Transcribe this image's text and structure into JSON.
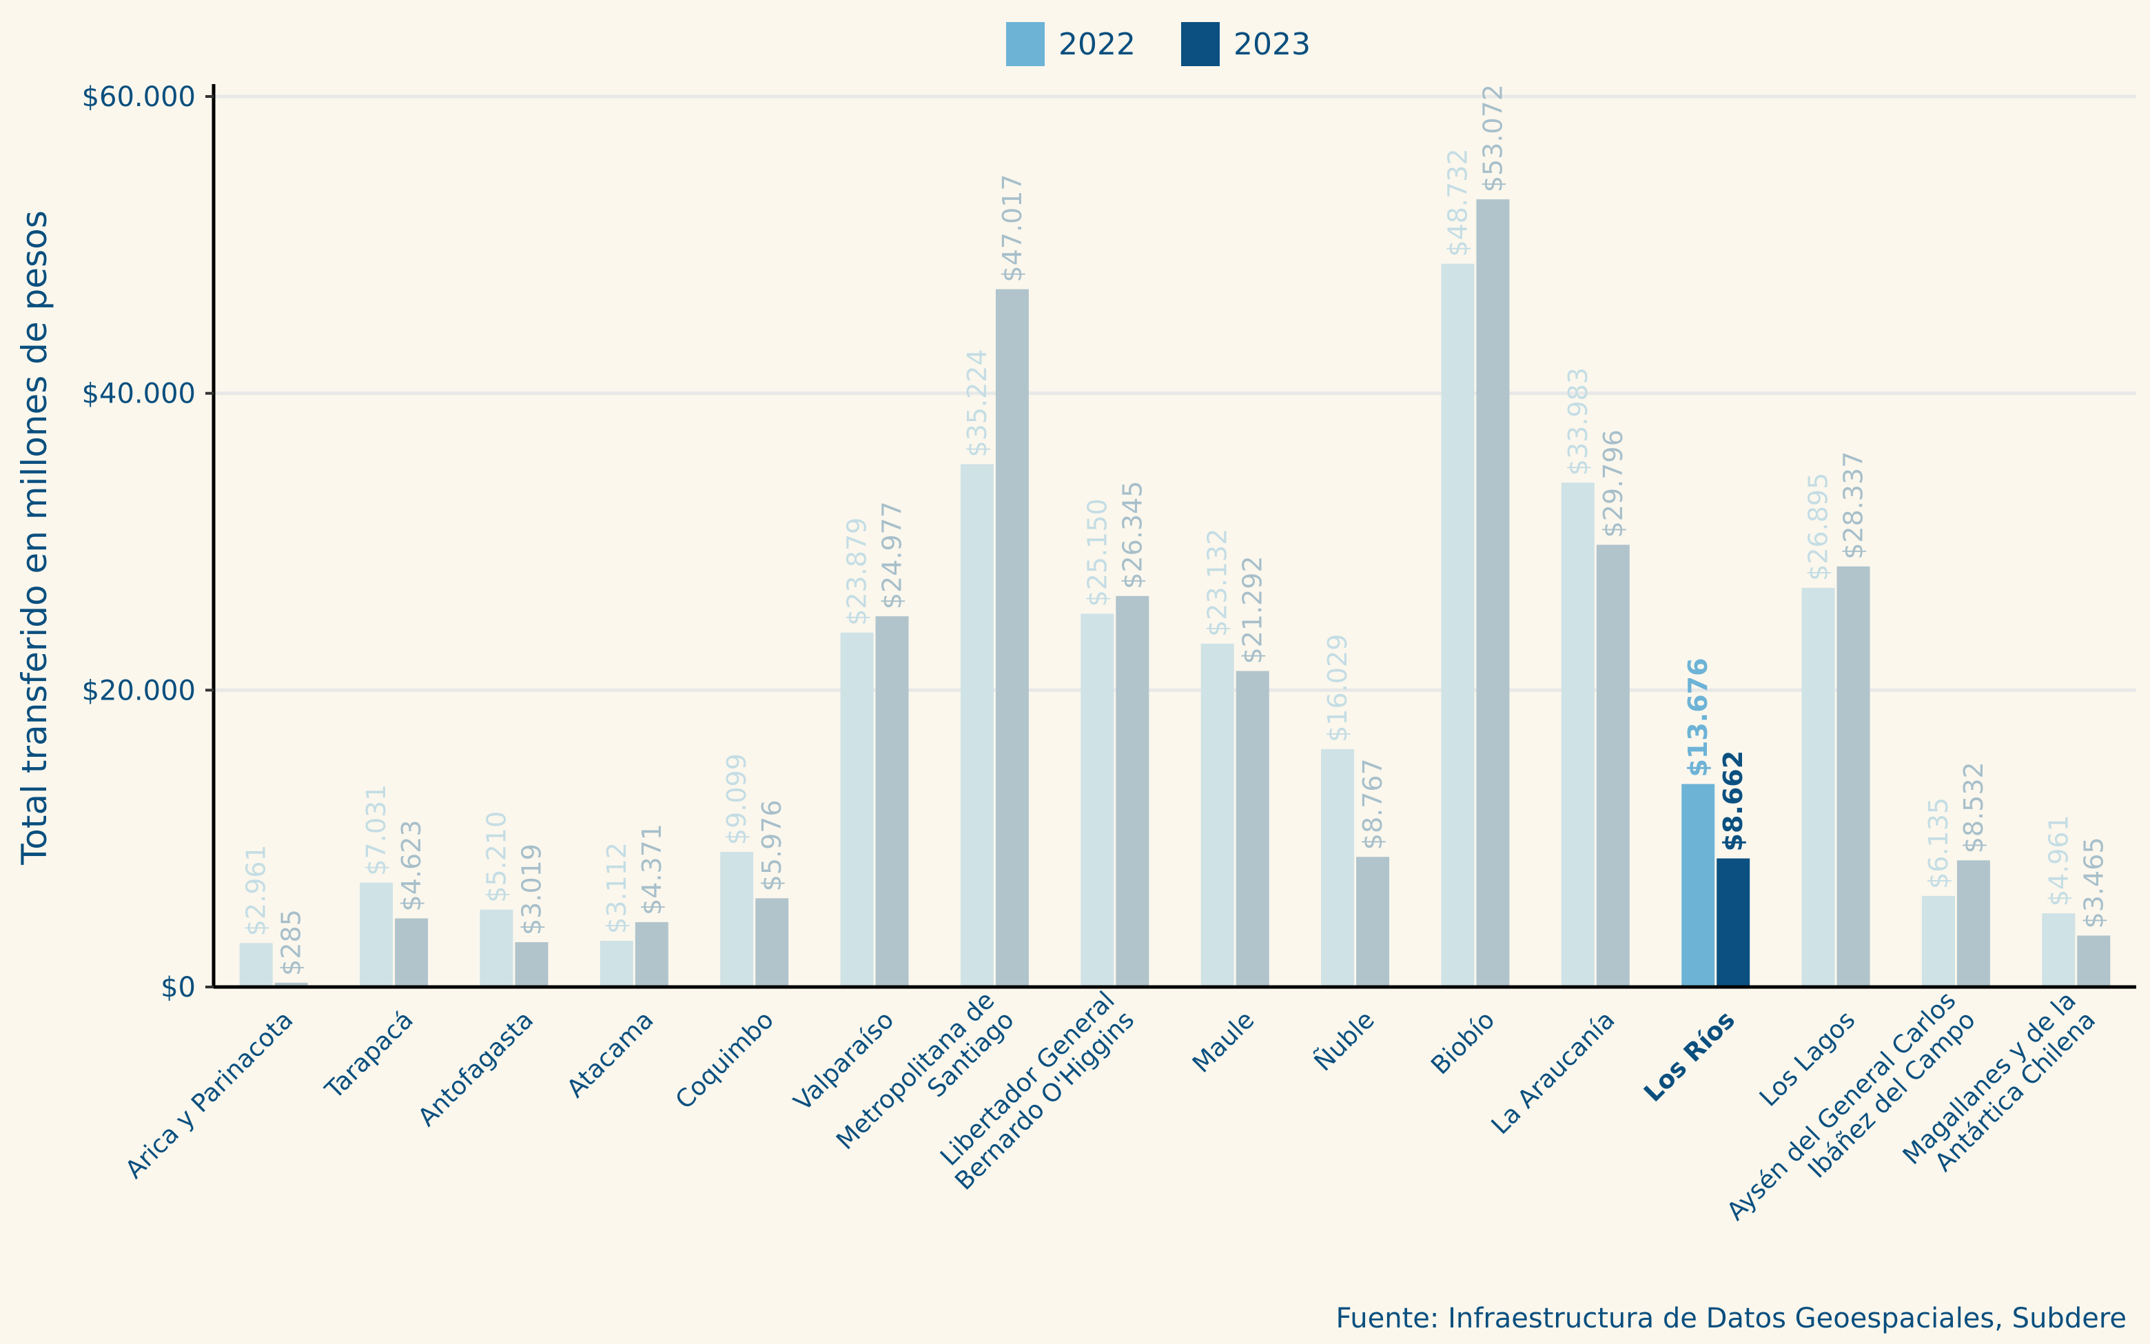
{
  "legend": {
    "items": [
      {
        "label": "2022",
        "color": "#6db3d6"
      },
      {
        "label": "2023",
        "color": "#0b5080"
      }
    ]
  },
  "caption": "Fuente: Infraestructura de Datos Geoespaciales, Subdere",
  "chart_data": {
    "type": "bar",
    "title": "",
    "xlabel": "",
    "ylabel": "Total transferido en millones de pesos",
    "ylim": [
      0,
      60000
    ],
    "yticks": [
      0,
      20000,
      40000,
      60000
    ],
    "ytick_labels": [
      "$0",
      "$20.000",
      "$40.000",
      "$60.000"
    ],
    "grid": "horizontal",
    "legend_position": "top-center",
    "highlight_category": "Los Ríos",
    "colors": {
      "highlight_2022": "#6db3d6",
      "highlight_2023": "#0b5080",
      "muted_2022": "#cfe2e6",
      "muted_2023": "#b1c4cc",
      "muted_label_2022": "#c4dde4",
      "muted_label_2023": "#a7bfca",
      "axis_text": "#0a4f7e"
    },
    "categories": [
      "Arica y Parinacota",
      "Tarapacá",
      "Antofagasta",
      "Atacama",
      "Coquimbo",
      "Valparaíso",
      "Metropolitana de\nSantiago",
      "Libertador General\nBernardo O'Higgins",
      "Maule",
      "Ñuble",
      "Biobío",
      "La Araucanía",
      "Los Ríos",
      "Los Lagos",
      "Aysén del General Carlos\nIbáñez del Campo",
      "Magallanes y de la\nAntártica Chilena"
    ],
    "series": [
      {
        "name": "2022",
        "values": [
          2961,
          7031,
          5210,
          3112,
          9099,
          23879,
          35224,
          25150,
          23132,
          16029,
          48732,
          33983,
          13676,
          26895,
          6135,
          4961
        ],
        "labels": [
          "$2.961",
          "$7.031",
          "$5.210",
          "$3.112",
          "$9.099",
          "$23.879",
          "$35.224",
          "$25.150",
          "$23.132",
          "$16.029",
          "$48.732",
          "$33.983",
          "$13.676",
          "$26.895",
          "$6.135",
          "$4.961"
        ]
      },
      {
        "name": "2023",
        "values": [
          285,
          4623,
          3019,
          4371,
          5976,
          24977,
          47017,
          26345,
          21292,
          8767,
          53072,
          29796,
          8662,
          28337,
          8532,
          3465
        ],
        "labels": [
          "$285",
          "$4.623",
          "$3.019",
          "$4.371",
          "$5.976",
          "$24.977",
          "$47.017",
          "$26.345",
          "$21.292",
          "$8.767",
          "$53.072",
          "$29.796",
          "$8.662",
          "$28.337",
          "$8.532",
          "$3.465"
        ]
      }
    ]
  }
}
